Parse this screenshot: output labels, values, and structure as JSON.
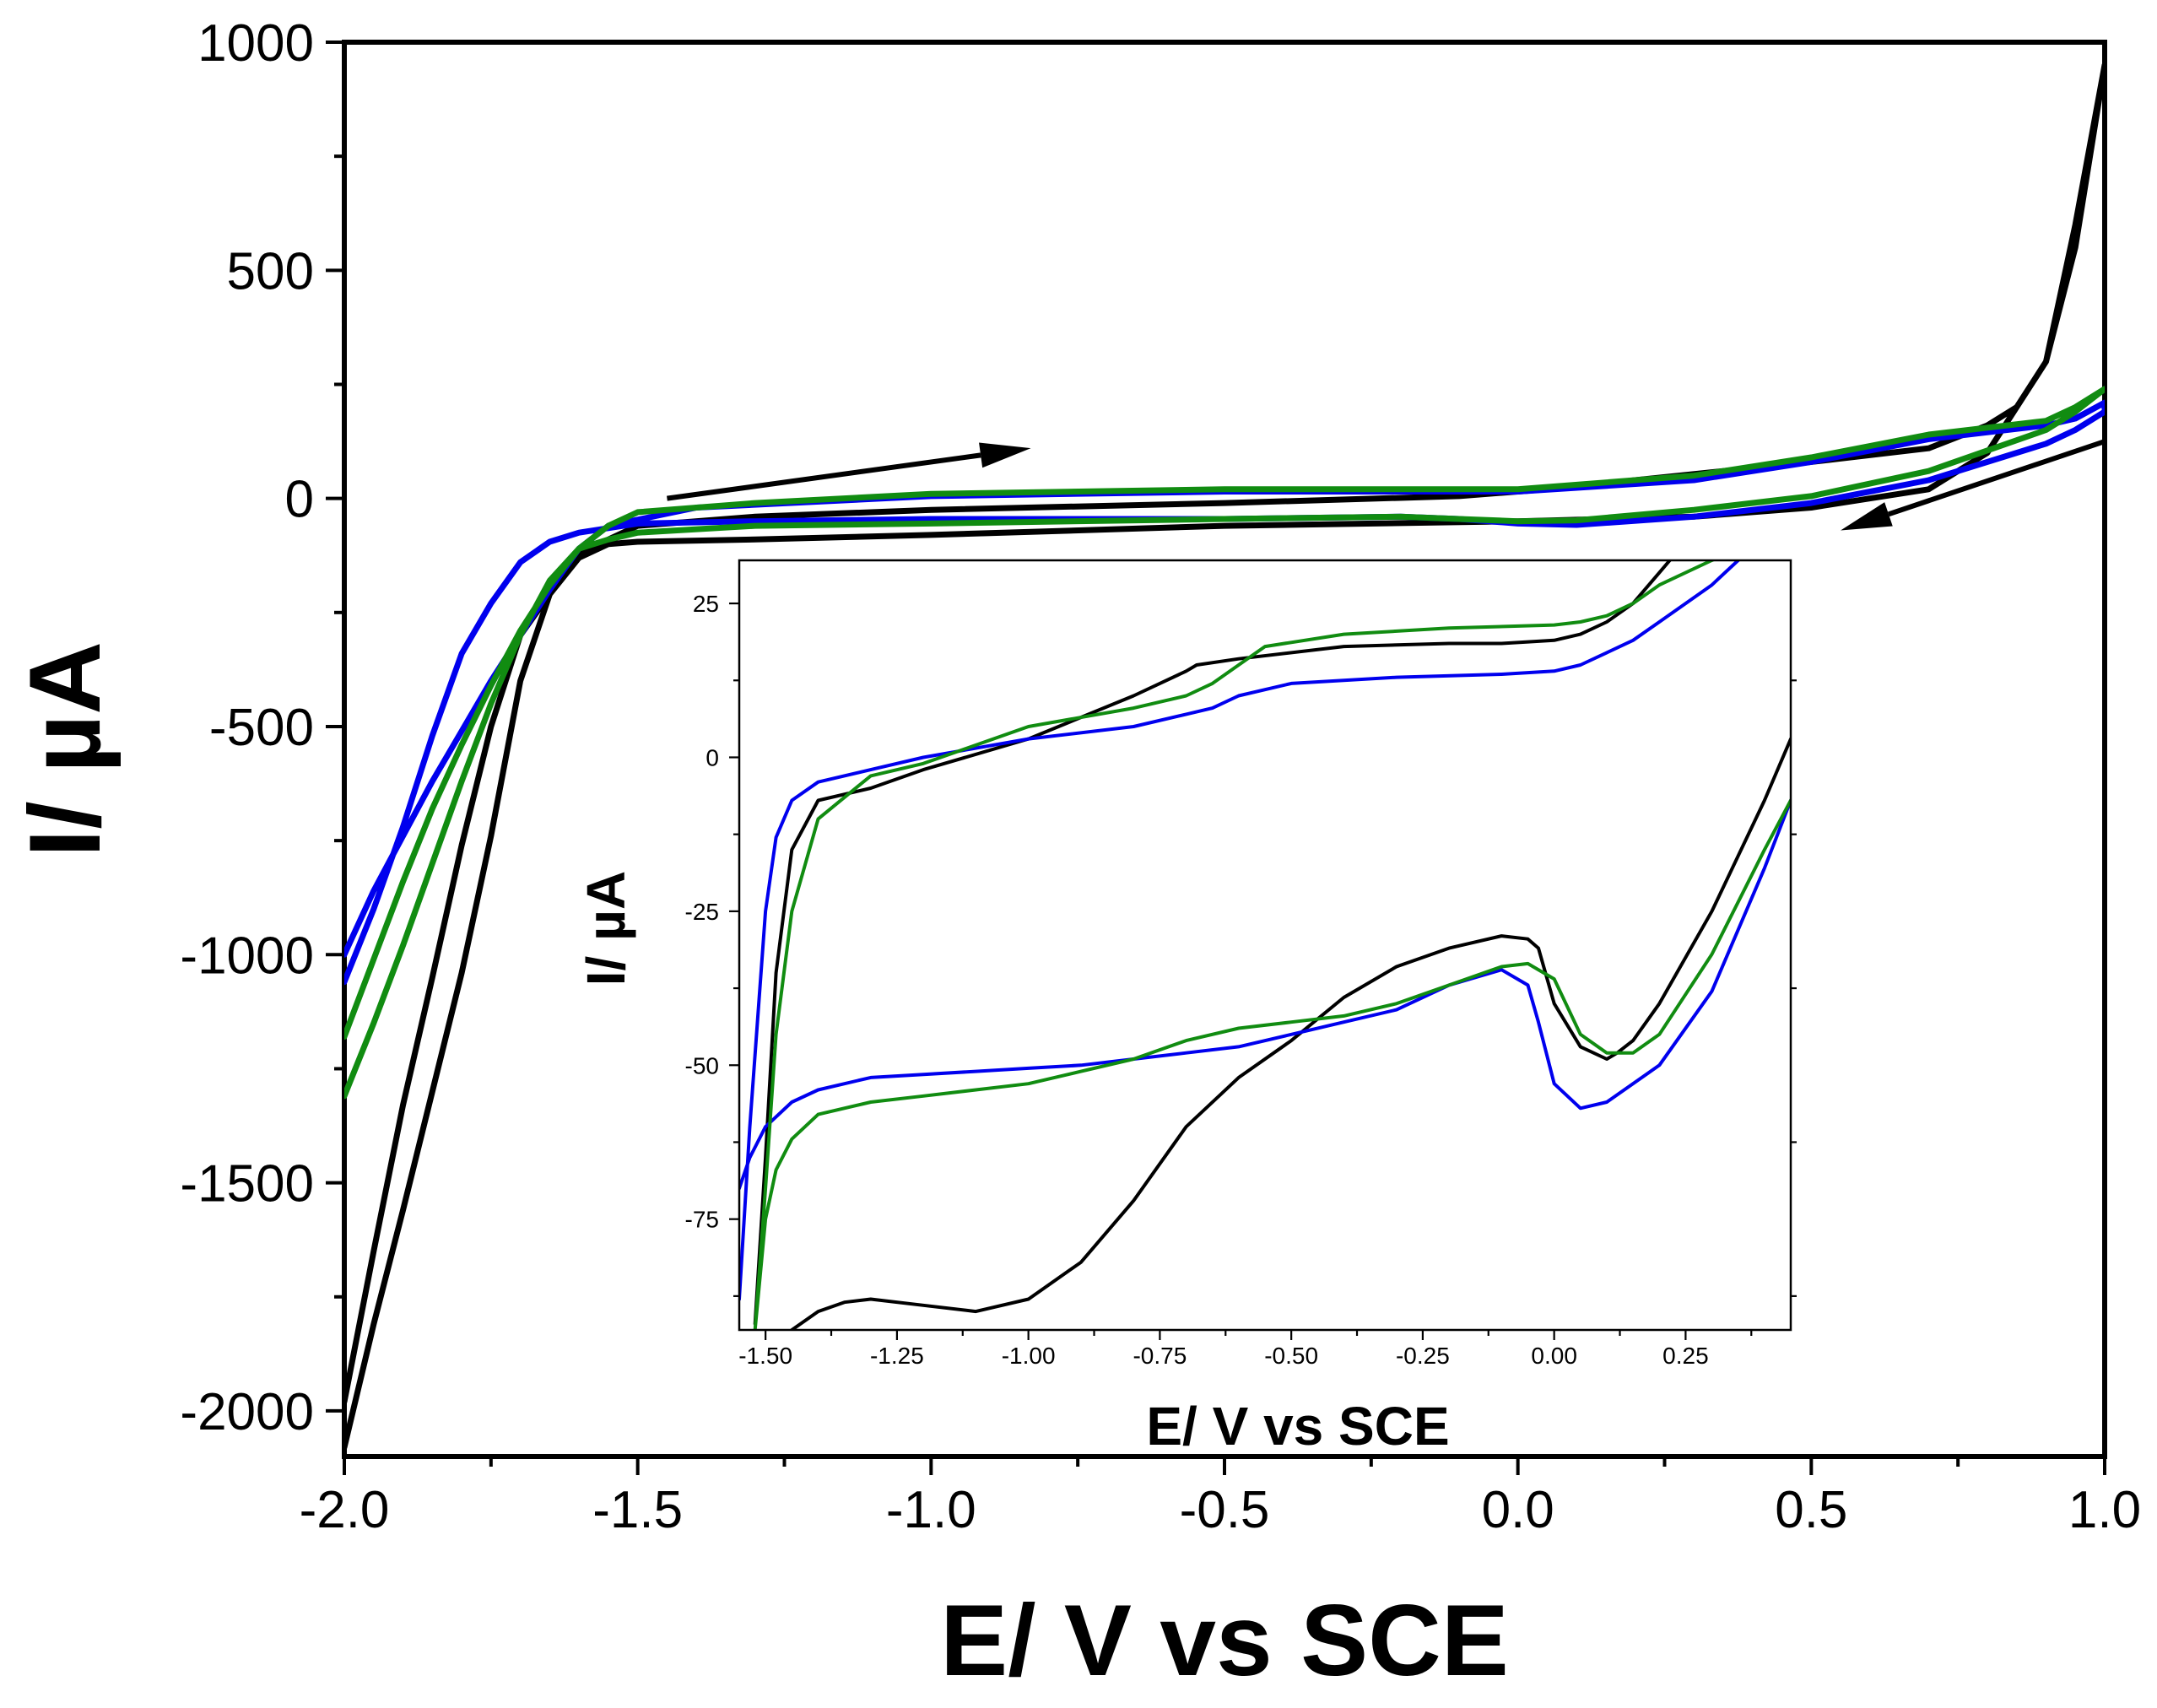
{
  "chart_data": [
    {
      "id": "main",
      "type": "line",
      "title": "",
      "xlabel": "E/ V vs SCE",
      "ylabel": "I/ µA",
      "xlim": [
        -2.0,
        1.0
      ],
      "ylim": [
        -2100,
        1000
      ],
      "x_ticks": [
        -2.0,
        -1.5,
        -1.0,
        -0.5,
        0.0,
        0.5,
        1.0
      ],
      "x_tick_labels": [
        "-2.0",
        "-1.5",
        "-1.0",
        "-0.5",
        "0.0",
        "0.5",
        "1.0"
      ],
      "y_ticks": [
        1000,
        500,
        0,
        -500,
        -1000,
        -1500,
        -2000
      ],
      "y_tick_labels": [
        "1000",
        "500",
        "0",
        "-500",
        "-1000",
        "-1500",
        "-2000"
      ],
      "grid": false,
      "legend": "none",
      "series": [
        {
          "color": "#000000",
          "width": 7,
          "x": [
            -2.0,
            -1.95,
            -1.9,
            -1.85,
            -1.8,
            -1.75,
            -1.7,
            -1.65,
            -1.6,
            -1.55,
            -1.5,
            -1.3,
            -1.0,
            -0.5,
            0.0,
            0.3,
            0.5,
            0.7,
            0.8,
            0.9,
            0.95,
            1.0,
            1.0,
            0.95,
            0.9,
            0.85,
            0.8,
            0.7,
            0.5,
            0.2,
            0.1,
            0.05,
            0.0,
            -0.1,
            -0.5,
            -1.0,
            -1.3,
            -1.5,
            -1.6,
            -1.7,
            -1.75,
            -1.8,
            -1.85,
            -1.9,
            -1.95,
            -2.0
          ],
          "y": [
            -2080,
            -1810,
            -1560,
            -1300,
            -1040,
            -740,
            -400,
            -210,
            -130,
            -100,
            -95,
            -90,
            -80,
            -60,
            -50,
            -40,
            -20,
            20,
            100,
            300,
            550,
            950,
            950,
            600,
            300,
            200,
            160,
            110,
            80,
            40,
            25,
            20,
            15,
            5,
            -10,
            -25,
            -40,
            -60,
            -120,
            -300,
            -500,
            -760,
            -1050,
            -1330,
            -1650,
            -1980
          ]
        },
        {
          "color": "#0000ee",
          "width": 7,
          "x": [
            -2.0,
            -1.95,
            -1.9,
            -1.85,
            -1.8,
            -1.75,
            -1.7,
            -1.65,
            -1.6,
            -1.55,
            -1.5,
            -1.3,
            -1.0,
            -0.5,
            -0.2,
            -0.1,
            0.0,
            0.1,
            0.3,
            0.5,
            0.7,
            0.9,
            0.95,
            1.0,
            1.0,
            0.95,
            0.9,
            0.7,
            0.5,
            0.3,
            0.0,
            -0.5,
            -1.0,
            -1.4,
            -1.55,
            -1.6,
            -1.65,
            -1.7,
            -1.75,
            -1.8,
            -1.85,
            -1.9,
            -1.95,
            -2.0
          ],
          "y": [
            -1060,
            -900,
            -720,
            -520,
            -340,
            -230,
            -140,
            -95,
            -75,
            -65,
            -55,
            -50,
            -45,
            -45,
            -40,
            -45,
            -55,
            -58,
            -40,
            -10,
            40,
            120,
            150,
            190,
            210,
            175,
            160,
            130,
            80,
            40,
            15,
            15,
            5,
            -20,
            -60,
            -110,
            -200,
            -300,
            -400,
            -510,
            -620,
            -740,
            -860,
            -1000
          ]
        },
        {
          "color": "#118c11",
          "width": 7,
          "x": [
            -2.0,
            -1.95,
            -1.9,
            -1.85,
            -1.8,
            -1.75,
            -1.7,
            -1.65,
            -1.6,
            -1.55,
            -1.5,
            -1.3,
            -1.0,
            -0.5,
            -0.2,
            -0.1,
            0.0,
            0.1,
            0.3,
            0.5,
            0.7,
            0.9,
            0.95,
            1.0,
            1.0,
            0.95,
            0.9,
            0.7,
            0.5,
            0.3,
            0.0,
            -0.5,
            -1.0,
            -1.3,
            -1.5,
            -1.55,
            -1.6,
            -1.65,
            -1.7,
            -1.75,
            -1.8,
            -1.85,
            -1.9,
            -1.95,
            -2.0
          ],
          "y": [
            -1310,
            -1150,
            -980,
            -800,
            -620,
            -450,
            -300,
            -180,
            -110,
            -90,
            -75,
            -60,
            -55,
            -45,
            -40,
            -45,
            -50,
            -48,
            -25,
            5,
            60,
            150,
            190,
            240,
            240,
            200,
            170,
            140,
            90,
            50,
            20,
            20,
            10,
            -10,
            -30,
            -60,
            -110,
            -190,
            -290,
            -410,
            -540,
            -680,
            -840,
            -1010,
            -1180
          ]
        }
      ],
      "arrows": [
        {
          "color": "#000000",
          "from": [
            -1.45,
            0
          ],
          "to": [
            -0.83,
            110
          ]
        },
        {
          "color": "#000000",
          "from": [
            1.0,
            125
          ],
          "to": [
            0.55,
            -70
          ]
        }
      ]
    },
    {
      "id": "inset",
      "type": "line",
      "title": "",
      "xlabel": "E/ V vs SCE",
      "ylabel": "I/ µA",
      "xlim": [
        -1.55,
        0.45
      ],
      "ylim": [
        -93,
        32
      ],
      "x_ticks": [
        -1.5,
        -1.25,
        -1.0,
        -0.75,
        -0.5,
        -0.25,
        0.0,
        0.25
      ],
      "x_tick_labels": [
        "-1.50",
        "-1.25",
        "-1.00",
        "-0.75",
        "-0.50",
        "-0.25",
        "0.00",
        "0.25"
      ],
      "y_ticks": [
        25,
        0,
        -25,
        -50,
        -75
      ],
      "y_tick_labels": [
        "25",
        "0",
        "-25",
        "-50",
        "-75"
      ],
      "grid": false,
      "legend": "none",
      "series": [
        {
          "color": "#000000",
          "width": 4,
          "x": [
            -1.52,
            -1.5,
            -1.48,
            -1.45,
            -1.4,
            -1.3,
            -1.2,
            -1.0,
            -0.8,
            -0.7,
            -0.68,
            -0.6,
            -0.4,
            -0.2,
            -0.1,
            0.0,
            0.05,
            0.1,
            0.15,
            0.2,
            0.22,
            null,
            0.45,
            0.4,
            0.3,
            0.2,
            0.15,
            0.12,
            0.1,
            0.05,
            0.0,
            -0.03,
            -0.05,
            -0.1,
            -0.2,
            -0.3,
            -0.4,
            -0.5,
            -0.6,
            -0.7,
            -0.8,
            -0.9,
            -1.0,
            -1.1,
            -1.2,
            -1.3,
            -1.35,
            -1.4,
            -1.45
          ],
          "y": [
            -92,
            -65,
            -35,
            -15,
            -7,
            -5,
            -2,
            3,
            10,
            14,
            15,
            16,
            18,
            18.5,
            18.5,
            19,
            20,
            22,
            25,
            30,
            32,
            null,
            3,
            -7,
            -25,
            -40,
            -46,
            -48,
            -49,
            -47,
            -40,
            -31,
            -29.5,
            -29,
            -31,
            -34,
            -39,
            -46,
            -52,
            -60,
            -72,
            -82,
            -88,
            -90,
            -89,
            -88,
            -88.5,
            -90,
            -93
          ]
        },
        {
          "color": "#0000ee",
          "width": 4,
          "x": [
            -1.55,
            -1.53,
            -1.5,
            -1.48,
            -1.45,
            -1.4,
            -1.3,
            -1.2,
            -1.0,
            -0.8,
            -0.7,
            -0.65,
            -0.6,
            -0.5,
            -0.3,
            -0.1,
            0.0,
            0.05,
            0.1,
            0.15,
            0.2,
            0.3,
            0.35,
            null,
            0.45,
            0.4,
            0.3,
            0.2,
            0.1,
            0.05,
            0.0,
            -0.03,
            -0.05,
            -0.1,
            -0.2,
            -0.3,
            -0.4,
            -0.5,
            -0.6,
            -0.7,
            -0.8,
            -0.9,
            -1.0,
            -1.1,
            -1.2,
            -1.3,
            -1.4,
            -1.45,
            -1.5,
            -1.53,
            -1.55
          ],
          "y": [
            -88,
            -60,
            -25,
            -13,
            -7,
            -4,
            -2,
            0,
            3,
            5,
            7,
            8,
            10,
            12,
            13,
            13.5,
            14,
            15,
            17,
            19,
            22,
            28,
            32,
            null,
            -7,
            -18,
            -38,
            -50,
            -56,
            -57,
            -53,
            -43,
            -37,
            -34.5,
            -37,
            -41,
            -43,
            -45,
            -47,
            -48,
            -49,
            -50,
            -50.5,
            -51,
            -51.5,
            -52,
            -54,
            -56,
            -60,
            -65,
            -70
          ]
        },
        {
          "color": "#118c11",
          "width": 4,
          "x": [
            -1.52,
            -1.5,
            -1.48,
            -1.45,
            -1.4,
            -1.3,
            -1.2,
            -1.0,
            -0.8,
            -0.7,
            -0.65,
            -0.6,
            -0.55,
            -0.4,
            -0.2,
            0.0,
            0.05,
            0.1,
            0.15,
            0.2,
            0.3,
            0.33,
            null,
            0.45,
            0.4,
            0.3,
            0.2,
            0.15,
            0.1,
            0.05,
            0.0,
            -0.05,
            -0.1,
            -0.2,
            -0.3,
            -0.4,
            -0.5,
            -0.6,
            -0.7,
            -0.8,
            -0.9,
            -1.0,
            -1.1,
            -1.2,
            -1.3,
            -1.4,
            -1.45,
            -1.48,
            -1.5,
            -1.52
          ],
          "y": [
            -93,
            -70,
            -45,
            -25,
            -10,
            -3,
            -1,
            5,
            8,
            10,
            12,
            15,
            18,
            20,
            21,
            21.5,
            22,
            23,
            25,
            28,
            32,
            33,
            null,
            -7,
            -15,
            -32,
            -45,
            -48,
            -48,
            -45,
            -36,
            -33.5,
            -34,
            -37,
            -40,
            -42,
            -43,
            -44,
            -46,
            -49,
            -51,
            -53,
            -54,
            -55,
            -56,
            -58,
            -62,
            -67,
            -75,
            -93
          ]
        }
      ]
    }
  ]
}
